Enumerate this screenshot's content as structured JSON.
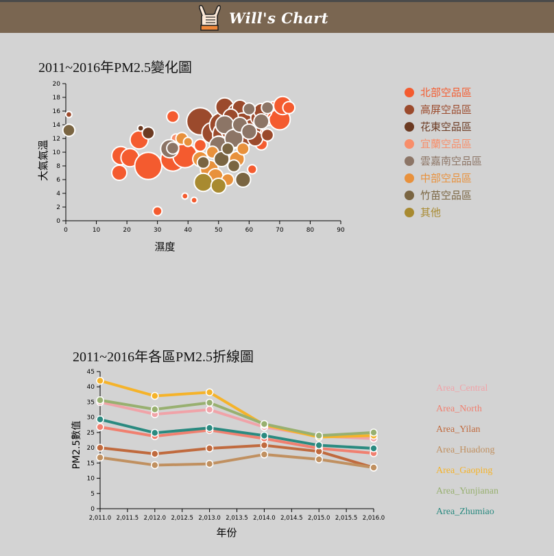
{
  "header": {
    "title": "Will's Chart",
    "logo_icon": "hang-loose-hand-icon"
  },
  "chart_data": [
    {
      "type": "scatter",
      "title": "2011~2016年PM2.5變化圖",
      "xlabel": "濕度",
      "ylabel": "大氣氣溫",
      "xlim": [
        0,
        90
      ],
      "ylim": [
        0,
        20
      ],
      "xticks": [
        0,
        10,
        20,
        30,
        40,
        50,
        60,
        70,
        80,
        90
      ],
      "yticks": [
        0,
        2,
        4,
        6,
        8,
        10,
        12,
        14,
        16,
        18,
        20
      ],
      "legend_position": "right",
      "series": [
        {
          "name": "北部空品區",
          "color": "#f45b2f",
          "points": [
            [
              30,
              1.4,
              3
            ],
            [
              39,
              3.6,
              2
            ],
            [
              42,
              3.0,
              2
            ],
            [
              17.5,
              7.0,
              5
            ],
            [
              18,
              9.5,
              6
            ],
            [
              21,
              9.2,
              6
            ],
            [
              24,
              11.8,
              6
            ],
            [
              27,
              8.0,
              9
            ],
            [
              35,
              9.0,
              8
            ],
            [
              39,
              9.5,
              8
            ],
            [
              44,
              11.0,
              4
            ],
            [
              48,
              13.0,
              5
            ],
            [
              50,
              12.5,
              5
            ],
            [
              55,
              14.5,
              6
            ],
            [
              58,
              12.0,
              6
            ],
            [
              60,
              14.2,
              7
            ],
            [
              62,
              13.0,
              5
            ],
            [
              64,
              11.2,
              4
            ],
            [
              66,
              15.0,
              5
            ],
            [
              68,
              16.5,
              4
            ],
            [
              70,
              14.8,
              7
            ],
            [
              71,
              16.8,
              6
            ],
            [
              73,
              16.5,
              4
            ],
            [
              61,
              7.5,
              3
            ],
            [
              53,
              16.0,
              5
            ],
            [
              57,
              15.5,
              5
            ],
            [
              35,
              15.2,
              4
            ],
            [
              65,
              16.0,
              5
            ],
            [
              46,
              13.5,
              3
            ]
          ]
        },
        {
          "name": "高屏空品區",
          "color": "#9b4a2c",
          "points": [
            [
              1,
              15.5,
              2
            ],
            [
              44,
              14.5,
              9
            ],
            [
              48,
              12.8,
              7
            ],
            [
              51,
              14.0,
              8
            ],
            [
              52,
              16.6,
              6
            ],
            [
              53,
              12.5,
              10
            ],
            [
              55,
              13.5,
              9
            ],
            [
              56,
              15.8,
              6
            ],
            [
              57,
              16.5,
              5
            ],
            [
              58,
              14.2,
              7
            ],
            [
              59,
              12.8,
              8
            ],
            [
              61,
              13.5,
              6
            ],
            [
              62,
              12.0,
              5
            ],
            [
              63,
              15.0,
              5
            ],
            [
              64,
              16.0,
              5
            ],
            [
              66,
              12.5,
              4
            ],
            [
              54,
              15.2,
              5
            ],
            [
              50,
              11.5,
              4
            ]
          ]
        },
        {
          "name": "花東空品區",
          "color": "#6b3a22",
          "points": [
            [
              24.5,
              13.5,
              2
            ],
            [
              27,
              12.8,
              4
            ],
            [
              55,
              12.0,
              3
            ]
          ]
        },
        {
          "name": "宜蘭空品區",
          "color": "#f88e6a",
          "points": [
            [
              36,
              12.0,
              3
            ],
            [
              50,
              10.5,
              4
            ]
          ]
        },
        {
          "name": "雲嘉南空品區",
          "color": "#8c7566",
          "points": [
            [
              34,
              10.5,
              6
            ],
            [
              35,
              10.6,
              4
            ],
            [
              50,
              11.0,
              6
            ],
            [
              52,
              14.0,
              6
            ],
            [
              55,
              12.0,
              6
            ],
            [
              57,
              14.0,
              5
            ],
            [
              60,
              13.0,
              5
            ],
            [
              64,
              14.5,
              5
            ],
            [
              66,
              16.5,
              4
            ],
            [
              60,
              16.3,
              4
            ]
          ]
        },
        {
          "name": "中部空品區",
          "color": "#e8913c",
          "points": [
            [
              38,
              12.0,
              4
            ],
            [
              40,
              11.5,
              3
            ],
            [
              44,
              9.0,
              5
            ],
            [
              47,
              7.5,
              6
            ],
            [
              49,
              6.5,
              5
            ],
            [
              53,
              6.0,
              4
            ],
            [
              56,
              9.0,
              5
            ],
            [
              58,
              10.5,
              4
            ],
            [
              48,
              10.0,
              4
            ]
          ]
        },
        {
          "name": "竹苗空品區",
          "color": "#7a6542",
          "points": [
            [
              1,
              13.2,
              4
            ],
            [
              45,
              8.5,
              4
            ],
            [
              51,
              9.0,
              5
            ],
            [
              55,
              8.0,
              4
            ],
            [
              58,
              6.0,
              5
            ],
            [
              53,
              10.5,
              4
            ]
          ]
        },
        {
          "name": "其他",
          "color": "#a88a30",
          "points": [
            [
              45,
              5.6,
              6
            ],
            [
              50,
              5.1,
              5
            ]
          ]
        }
      ]
    },
    {
      "type": "line",
      "title": "2011~2016年各區PM2.5折線圖",
      "xlabel": "年份",
      "ylabel": "PM2.5數值",
      "xlim": [
        2011,
        2016
      ],
      "ylim": [
        0,
        45
      ],
      "xtick_labels": [
        "2,011.0",
        "2,011.5",
        "2,012.0",
        "2,012.5",
        "2,013.0",
        "2,013.5",
        "2,014.0",
        "2,014.5",
        "2,015.0",
        "2,015.5",
        "2,016.0"
      ],
      "yticks": [
        0,
        5,
        10,
        15,
        20,
        25,
        30,
        35,
        40,
        45
      ],
      "x": [
        2011,
        2012,
        2013,
        2014,
        2015,
        2016
      ],
      "legend_position": "right",
      "series": [
        {
          "name": "Area_Central",
          "color": "#f0a3a8",
          "values": [
            35.0,
            31.0,
            32.5,
            26.8,
            23.8,
            23.0
          ]
        },
        {
          "name": "Area_North",
          "color": "#f08070",
          "values": [
            26.8,
            23.8,
            25.8,
            23.0,
            19.8,
            18.2
          ]
        },
        {
          "name": "Area_Yilan",
          "color": "#c06a3e",
          "values": [
            20.0,
            18.0,
            19.8,
            20.8,
            18.8,
            13.5
          ]
        },
        {
          "name": "Area_Huadong",
          "color": "#c09060",
          "values": [
            16.8,
            14.3,
            14.7,
            17.8,
            16.2,
            13.5
          ]
        },
        {
          "name": "Area_Gaoping",
          "color": "#f5b32a",
          "values": [
            42.0,
            37.0,
            38.2,
            27.5,
            23.5,
            24.0
          ]
        },
        {
          "name": "Area_Yunjianan",
          "color": "#98b070",
          "values": [
            35.6,
            32.6,
            34.8,
            27.8,
            24.0,
            25.0
          ]
        },
        {
          "name": "Area_Zhumiao",
          "color": "#2a8a80",
          "values": [
            29.3,
            24.9,
            26.5,
            24.0,
            20.8,
            19.8
          ]
        }
      ]
    }
  ]
}
